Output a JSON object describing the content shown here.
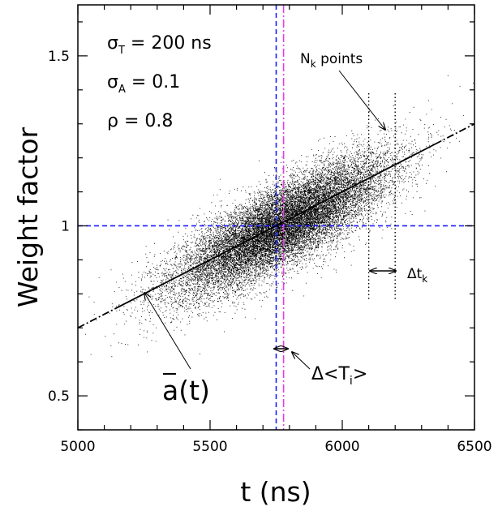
{
  "chart_data": {
    "type": "scatter",
    "xlabel": "t (ns)",
    "ylabel": "Weight factor",
    "xlim": [
      5000,
      6500
    ],
    "ylim": [
      0.4,
      1.65
    ],
    "xticks": [
      5000,
      5500,
      6000,
      6500
    ],
    "xtick_labels": [
      "5000",
      "5500",
      "6000",
      "6500"
    ],
    "yticks": [
      0.5,
      1,
      1.5
    ],
    "ytick_labels": [
      "0.5",
      "1",
      "1.5"
    ],
    "grid": false,
    "scatter_model": {
      "description": "dense cloud of points (bivariate normal)",
      "mean_t": 5770,
      "sigma_t": 200,
      "mean_a": 1.0,
      "sigma_a": 0.1,
      "rho": 0.8
    },
    "fit_line": {
      "name": "ā(t)",
      "points": [
        [
          5000,
          0.7
        ],
        [
          6500,
          1.3
        ]
      ],
      "solid_range": [
        5150,
        6350
      ]
    },
    "reference_lines": {
      "horizontal_blue_y": 1.0,
      "vertical_blue_x": 5750,
      "vertical_magenta_x": 5778
    },
    "bin_lines": {
      "x": [
        6100,
        6200
      ],
      "y_range": [
        0.78,
        1.39
      ]
    },
    "annotations": {
      "sigma_T": "σ_T = 200 ns",
      "sigma_A": "σ_A = 0.1",
      "rho": "ρ = 0.8",
      "n_points": "N_k points",
      "delta_t": "Δt_k",
      "delta_T": "Δ<T_i>",
      "abar": "ā(t)"
    }
  },
  "colors": {
    "blue_dashed": "#1a1aff",
    "magenta_dashdot": "#e83ce8",
    "points": "#000000",
    "axes": "#000000"
  }
}
